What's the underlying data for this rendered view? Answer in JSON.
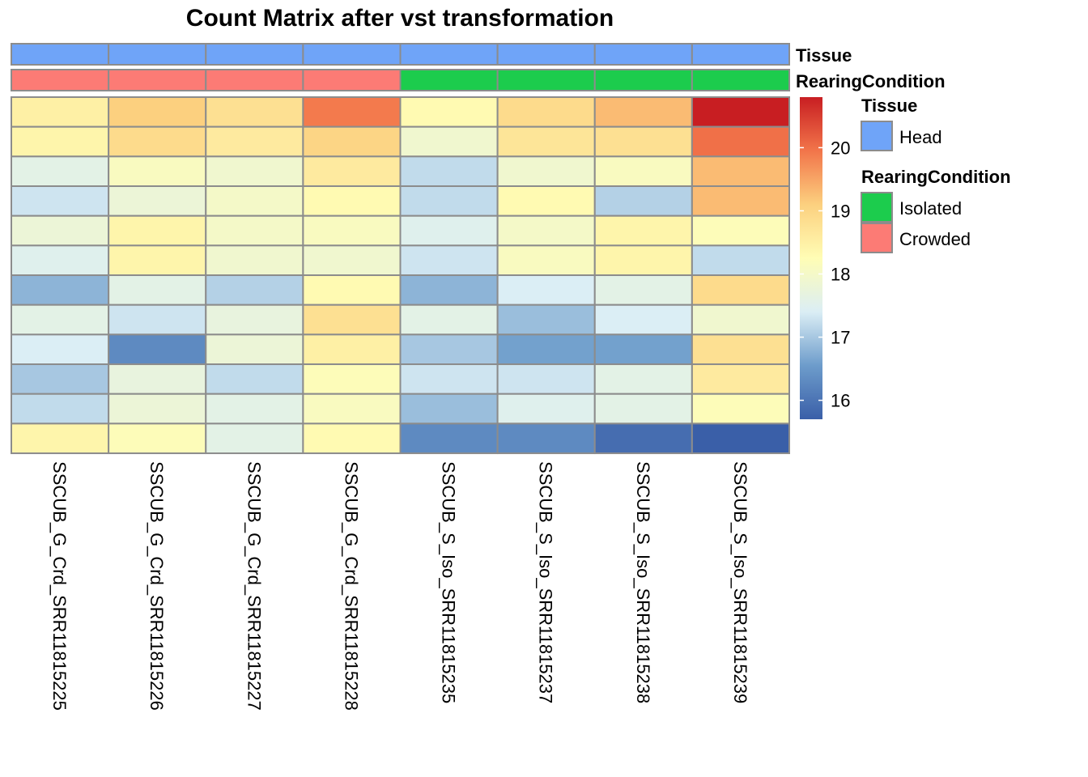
{
  "chart_data": {
    "type": "heatmap",
    "title": "Count Matrix after vst transformation",
    "columns": [
      "SSCUB_G_Crd_SRR11815225",
      "SSCUB_G_Crd_SRR11815226",
      "SSCUB_G_Crd_SRR11815227",
      "SSCUB_G_Crd_SRR11815228",
      "SSCUB_S_Iso_SRR11815235",
      "SSCUB_S_Iso_SRR11815237",
      "SSCUB_S_Iso_SRR11815238",
      "SSCUB_S_Iso_SRR11815239"
    ],
    "values": [
      [
        18.5,
        19.1,
        18.8,
        19.9,
        18.3,
        18.9,
        19.3,
        20.8
      ],
      [
        18.4,
        18.9,
        18.6,
        19.0,
        17.9,
        18.7,
        18.8,
        20.0
      ],
      [
        17.6,
        18.1,
        17.9,
        18.6,
        17.2,
        17.9,
        18.1,
        19.3
      ],
      [
        17.3,
        17.8,
        18.0,
        18.3,
        17.2,
        18.3,
        17.1,
        19.3
      ],
      [
        17.8,
        18.4,
        18.0,
        18.1,
        17.5,
        18.0,
        18.4,
        18.2
      ],
      [
        17.5,
        18.4,
        17.9,
        17.9,
        17.3,
        18.1,
        18.4,
        17.2
      ],
      [
        16.8,
        17.6,
        17.1,
        18.3,
        16.8,
        17.4,
        17.6,
        18.9
      ],
      [
        17.6,
        17.3,
        17.7,
        18.8,
        17.6,
        16.9,
        17.4,
        17.9
      ],
      [
        17.4,
        16.3,
        17.8,
        18.5,
        17.0,
        16.6,
        16.6,
        18.8
      ],
      [
        17.0,
        17.7,
        17.2,
        18.2,
        17.3,
        17.3,
        17.6,
        18.6
      ],
      [
        17.2,
        17.8,
        17.6,
        18.1,
        16.9,
        17.5,
        17.6,
        18.2
      ],
      [
        18.4,
        18.2,
        17.6,
        18.3,
        16.3,
        16.3,
        15.9,
        15.7
      ]
    ],
    "annotations": {
      "Tissue": [
        "Head",
        "Head",
        "Head",
        "Head",
        "Head",
        "Head",
        "Head",
        "Head"
      ],
      "RearingCondition": [
        "Crowded",
        "Crowded",
        "Crowded",
        "Crowded",
        "Isolated",
        "Isolated",
        "Isolated",
        "Isolated"
      ]
    },
    "annotation_labels": [
      "Tissue",
      "RearingCondition"
    ],
    "annotation_colors": {
      "Head": "#6fa4f8",
      "Isolated": "#1ccc4d",
      "Crowded": "#fc7b75"
    },
    "legends": [
      {
        "title": "Tissue",
        "items": [
          {
            "label": "Head",
            "color": "#6fa4f8"
          }
        ]
      },
      {
        "title": "RearingCondition",
        "items": [
          {
            "label": "Isolated",
            "color": "#1ccc4d"
          },
          {
            "label": "Crowded",
            "color": "#fc7b75"
          }
        ]
      }
    ],
    "color_scale": {
      "range": [
        15.7,
        20.8
      ],
      "ticks": [
        16,
        17,
        18,
        19,
        20
      ],
      "stops": [
        "#3a5fa8",
        "#6d9ccb",
        "#dbeef5",
        "#fffdb5",
        "#fcd07f",
        "#f2754a",
        "#c81e22"
      ]
    },
    "cell_border_color": "#8c8c8c"
  }
}
